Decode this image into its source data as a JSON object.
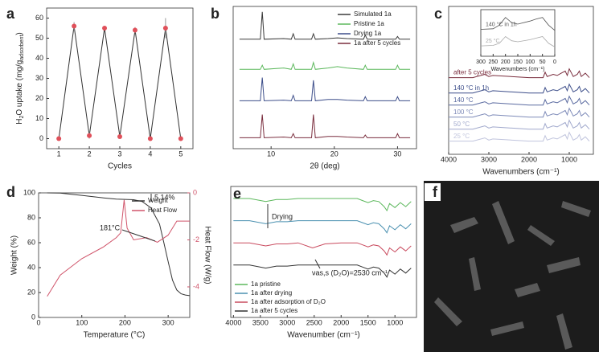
{
  "chart_data": [
    {
      "type": "line",
      "panel_label": "a",
      "xlabel": "Cycles",
      "ylabel": [
        "H",
        "2",
        "O uptake (mg/g",
        "adsorbent",
        ")"
      ],
      "x": [
        1,
        1.5,
        2,
        2.5,
        3,
        3.5,
        4,
        4.5,
        5
      ],
      "series": [
        {
          "color": "#333333",
          "marker_color": "#e0505a",
          "values": [
            0,
            56,
            1.5,
            55,
            1,
            54,
            0,
            55,
            0
          ],
          "errors": [
            0,
            2,
            1.5,
            0,
            0,
            1.5,
            0,
            5,
            0
          ]
        }
      ],
      "xlim": [
        0.6,
        5.4
      ],
      "xticks": [
        1,
        2,
        3,
        4,
        5
      ],
      "ylim": [
        -5,
        65
      ],
      "yticks": [
        0,
        10,
        20,
        30,
        40,
        50,
        60
      ]
    },
    {
      "type": "line",
      "panel_label": "b",
      "xlabel": "2θ (deg)",
      "legend": "upper right",
      "x": [
        5,
        8.3,
        8.6,
        8.9,
        12,
        13.2,
        13.5,
        13.8,
        16.4,
        16.7,
        17,
        19,
        20.5,
        22,
        24.6,
        24.9,
        25.2,
        29.7,
        30,
        30.3,
        32
      ],
      "series": [
        {
          "name": "Simulated 1a",
          "color": "#3a3a3a",
          "values": [
            80,
            80,
            100,
            80,
            80.5,
            80,
            84,
            80,
            80,
            84,
            80,
            80.5,
            81,
            80.5,
            80,
            83,
            80,
            80,
            82,
            80,
            80
          ]
        },
        {
          "name": "Pristine 1a",
          "color": "#5cb85c",
          "values": [
            58,
            58,
            61,
            58,
            59,
            58,
            62,
            58,
            58,
            63,
            58,
            59,
            60,
            59,
            58,
            61,
            58,
            58,
            61,
            58,
            58
          ]
        },
        {
          "name": "Drying 1a",
          "color": "#3d4e8a",
          "values": [
            35,
            35,
            52,
            35,
            35.5,
            35,
            39,
            35,
            35,
            50,
            35,
            36,
            36,
            35.5,
            35,
            38,
            35,
            35,
            38,
            35,
            35
          ]
        },
        {
          "name": "1a after 5 cycles",
          "color": "#7a2e3e",
          "values": [
            8,
            8,
            25,
            8,
            8.5,
            8,
            11,
            8,
            8,
            25,
            8,
            9,
            9,
            8.5,
            8,
            10,
            8,
            8,
            11,
            8,
            8
          ]
        }
      ],
      "xlim": [
        4,
        33
      ],
      "xticks": [
        10,
        20,
        30
      ],
      "ylim": [
        0,
        104
      ]
    },
    {
      "type": "line",
      "panel_label": "c",
      "xlabel": "Wavenumbers (cm⁻¹)",
      "legend": "inline",
      "x": [
        4000,
        3400,
        3100,
        3000,
        2900,
        2000,
        1650,
        1600,
        1550,
        1400,
        1300,
        1200,
        1100,
        1050,
        1000,
        900,
        800,
        750,
        700,
        600,
        500
      ],
      "series": [
        {
          "name": "after 5 cycles",
          "color": "#7a2e3e",
          "values": [
            80,
            80,
            83,
            81,
            82,
            80,
            80,
            85,
            81,
            83,
            82,
            84,
            86,
            82,
            88,
            81,
            83,
            86,
            81,
            84,
            80
          ]
        },
        {
          "name": "140 °C in 1h",
          "color": "#3d4e8a",
          "values": [
            66,
            66,
            69,
            67,
            68,
            66,
            66,
            71,
            67,
            69,
            68,
            70,
            72,
            68,
            74,
            67,
            69,
            72,
            67,
            70,
            66
          ]
        },
        {
          "name": "140 °C",
          "color": "#5a6aa0",
          "values": [
            55,
            55,
            58,
            56,
            57,
            55,
            55,
            60,
            56,
            58,
            57,
            59,
            61,
            57,
            63,
            56,
            58,
            61,
            56,
            59,
            55
          ]
        },
        {
          "name": "100 °C",
          "color": "#7d8ab8",
          "values": [
            44,
            44,
            47,
            45,
            46,
            44,
            44,
            49,
            45,
            47,
            46,
            48,
            50,
            46,
            52,
            45,
            47,
            50,
            45,
            48,
            44
          ]
        },
        {
          "name": "50 °C",
          "color": "#a0a8cc",
          "values": [
            33,
            33,
            36,
            34,
            35,
            33,
            33,
            38,
            34,
            36,
            35,
            37,
            39,
            35,
            41,
            34,
            36,
            39,
            34,
            37,
            33
          ]
        },
        {
          "name": "25 °C",
          "color": "#c0c4dd",
          "values": [
            22,
            22,
            25,
            23,
            24,
            22,
            22,
            27,
            23,
            25,
            24,
            26,
            28,
            24,
            30,
            23,
            25,
            28,
            23,
            26,
            22
          ]
        }
      ],
      "xlim": [
        4000,
        400
      ],
      "xticks": [
        4000,
        3000,
        2000,
        1000
      ],
      "ylim": [
        10,
        145
      ],
      "inset": {
        "xlabel": "Wavenumbers (cm⁻¹)",
        "legend": "inline",
        "x": [
          300,
          250,
          225,
          200,
          175,
          150,
          100,
          75,
          50,
          25,
          0
        ],
        "series": [
          {
            "name": "140 °C in 1h",
            "color": "#555555",
            "values": [
              62,
              63,
              70,
              85,
              75,
              72,
              78,
              82,
              85,
              70,
              60
            ]
          },
          {
            "name": "25 °C",
            "color": "#aaaaaa",
            "values": [
              30,
              31,
              35,
              48,
              40,
              38,
              42,
              45,
              48,
              35,
              28
            ]
          }
        ],
        "xlim": [
          300,
          0
        ],
        "xticks": [
          300,
          250,
          200,
          150,
          100,
          50,
          0
        ],
        "ylim": [
          10,
          100
        ]
      }
    },
    {
      "type": "line",
      "panel_label": "d",
      "xlabel": "Temperature (°C)",
      "ylabel": "Weight (%)",
      "y2label": "Heat Flow (W/g)",
      "legend": "upper right",
      "annotations": [
        "5.14%",
        "181°C"
      ],
      "series": [
        {
          "name": "Weight",
          "color": "#333333",
          "x": [
            20,
            50,
            100,
            150,
            180,
            200,
            220,
            240,
            260,
            280,
            290,
            300,
            310,
            320,
            330,
            340,
            350
          ],
          "values": [
            100,
            99.8,
            98,
            96,
            95,
            94.8,
            94.5,
            93,
            88,
            75,
            60,
            45,
            30,
            22,
            19,
            18,
            17.5
          ]
        },
        {
          "name": "Heat Flow",
          "color": "#d0546a",
          "axis": "y2",
          "x": [
            20,
            50,
            100,
            150,
            180,
            190,
            198,
            205,
            220,
            250,
            275,
            300,
            320,
            350
          ],
          "values": [
            -4.4,
            -3.5,
            -2.8,
            -2.3,
            -1.9,
            -1.7,
            -0.3,
            -1.5,
            -2,
            -1.9,
            -2.1,
            -1.8,
            -1.2,
            -1.2
          ]
        }
      ],
      "xlim": [
        0,
        350
      ],
      "xticks": [
        0,
        100,
        200,
        300
      ],
      "ylim": [
        0,
        100
      ],
      "yticks": [
        0,
        20,
        40,
        60,
        80,
        100
      ],
      "y2lim": [
        -5.3,
        0
      ],
      "y2ticks": [
        0,
        -2,
        -4
      ]
    },
    {
      "type": "line",
      "panel_label": "e",
      "xlabel": "Wavenumber (cm⁻¹)",
      "legend": "lower left",
      "annotations": [
        "Drying",
        "νas,s (D₂O)=2530 cm⁻¹"
      ],
      "x": [
        4000,
        3700,
        3400,
        3200,
        3000,
        2800,
        2530,
        2300,
        2000,
        1700,
        1600,
        1500,
        1400,
        1300,
        1200,
        1150,
        1100,
        1000,
        900,
        800,
        700
      ],
      "series": [
        {
          "name": "1a pristine",
          "color": "#5cb85c",
          "values": [
            88,
            88,
            85,
            87,
            87,
            88,
            88,
            88,
            88,
            88,
            86,
            84,
            86,
            85,
            80,
            76,
            83,
            79,
            84,
            80,
            85
          ]
        },
        {
          "name": "1a after drying",
          "color": "#4a90b0",
          "values": [
            66,
            66,
            63,
            65,
            65,
            66,
            66,
            66,
            66,
            66,
            64,
            62,
            64,
            63,
            58,
            54,
            61,
            57,
            62,
            58,
            63
          ]
        },
        {
          "name": "1a after adsorption of D₂O",
          "color": "#c94a5e",
          "values": [
            44,
            44,
            41,
            43,
            43,
            44,
            39,
            43,
            44,
            44,
            42,
            40,
            42,
            41,
            36,
            32,
            39,
            35,
            40,
            36,
            41
          ]
        },
        {
          "name": "1a after 5 cycles",
          "color": "#333333",
          "values": [
            22,
            22,
            19,
            21,
            21,
            22,
            22,
            22,
            22,
            22,
            20,
            18,
            20,
            19,
            14,
            10,
            17,
            13,
            18,
            14,
            19
          ]
        }
      ],
      "xlim": [
        4050,
        600
      ],
      "xticks": [
        4000,
        3500,
        3000,
        2500,
        2000,
        1500,
        1000
      ],
      "ylim": [
        -30,
        100
      ]
    },
    {
      "type": "image",
      "panel_label": "f"
    }
  ]
}
